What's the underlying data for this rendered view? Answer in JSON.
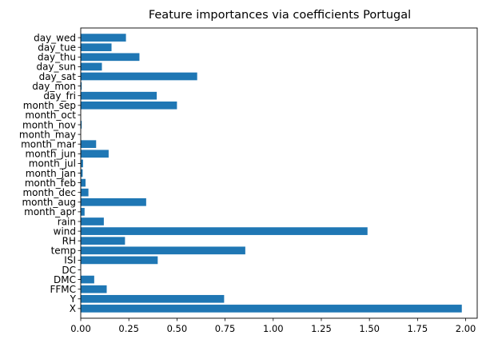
{
  "chart_data": {
    "type": "bar",
    "orientation": "horizontal",
    "title": "Feature importances via coefficients Portugal",
    "xlabel": "",
    "ylabel": "",
    "xlim": [
      0,
      2.06
    ],
    "grid": false,
    "bar_color": "#1f77b4",
    "categories": [
      "X",
      "Y",
      "FFMC",
      "DMC",
      "DC",
      "ISI",
      "temp",
      "RH",
      "wind",
      "rain",
      "month_apr",
      "month_aug",
      "month_dec",
      "month_feb",
      "month_jan",
      "month_jul",
      "month_jun",
      "month_mar",
      "month_may",
      "month_nov",
      "month_oct",
      "month_sep",
      "day_fri",
      "day_mon",
      "day_sat",
      "day_sun",
      "day_thu",
      "day_tue",
      "day_wed"
    ],
    "values": [
      1.98,
      0.745,
      0.135,
      0.07,
      0.0,
      0.4,
      0.855,
      0.23,
      1.49,
      0.12,
      0.02,
      0.34,
      0.04,
      0.025,
      0.01,
      0.012,
      0.145,
      0.08,
      0.0,
      0.005,
      0.0,
      0.5,
      0.395,
      0.005,
      0.605,
      0.11,
      0.305,
      0.16,
      0.235
    ],
    "xticks": [
      0.0,
      0.25,
      0.5,
      0.75,
      1.0,
      1.25,
      1.5,
      1.75,
      2.0
    ],
    "xtick_labels": [
      "0.00",
      "0.25",
      "0.50",
      "0.75",
      "1.00",
      "1.25",
      "1.50",
      "1.75",
      "2.00"
    ]
  }
}
